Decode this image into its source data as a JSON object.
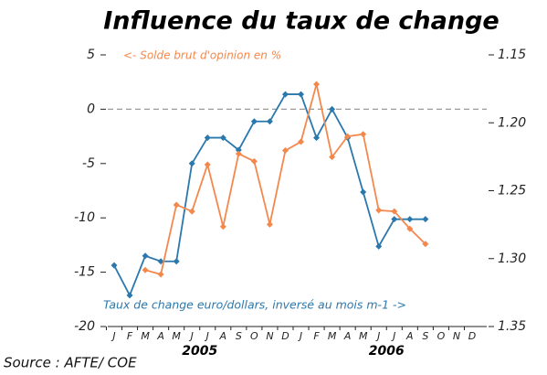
{
  "chart_data": {
    "type": "line",
    "title": "Influence du taux de change",
    "left_label": "<- Solde brut d'opinion en %",
    "right_label": "Taux de change euro/dollars, inversé au mois m-1 ->",
    "source": "Source : AFTE/ COE",
    "categories": [
      "J",
      "F",
      "M",
      "A",
      "M",
      "J",
      "J",
      "A",
      "S",
      "O",
      "N",
      "D",
      "J",
      "F",
      "M",
      "A",
      "M",
      "J",
      "J",
      "A",
      "S",
      "O",
      "N",
      "D"
    ],
    "years": [
      "2005",
      "2006"
    ],
    "ylim": [
      -20,
      5
    ],
    "yticks": [
      5,
      0,
      -5,
      -10,
      -15,
      -20
    ],
    "y2lim": [
      1.35,
      1.15
    ],
    "y2ticks": [
      1.15,
      {
        "value": 1.2,
        "label": "1.20"
      },
      1.25,
      {
        "value": 1.3,
        "label": "1.30"
      },
      1.35
    ],
    "zero_line": true,
    "series": [
      {
        "name": "Taux de change euro/dollars",
        "color": "#2b78ad",
        "axis": "y2",
        "values": [
          1.305,
          1.327,
          1.298,
          1.302,
          1.302,
          1.23,
          1.211,
          1.211,
          1.22,
          1.199,
          1.199,
          1.179,
          1.179,
          1.211,
          1.19,
          1.211,
          1.251,
          1.291,
          1.271,
          1.271,
          1.271,
          null,
          null,
          null
        ]
      },
      {
        "name": "Solde brut d'opinion",
        "color": "#f4884c",
        "axis": "y",
        "values": [
          null,
          null,
          -14.8,
          -15.2,
          -8.8,
          -9.4,
          -5.1,
          -10.8,
          -4.1,
          -4.8,
          -10.6,
          -3.8,
          -3.0,
          2.3,
          -4.4,
          -2.5,
          -2.3,
          -9.3,
          -9.4,
          -11.0,
          -12.4,
          null,
          null,
          null
        ]
      }
    ]
  }
}
